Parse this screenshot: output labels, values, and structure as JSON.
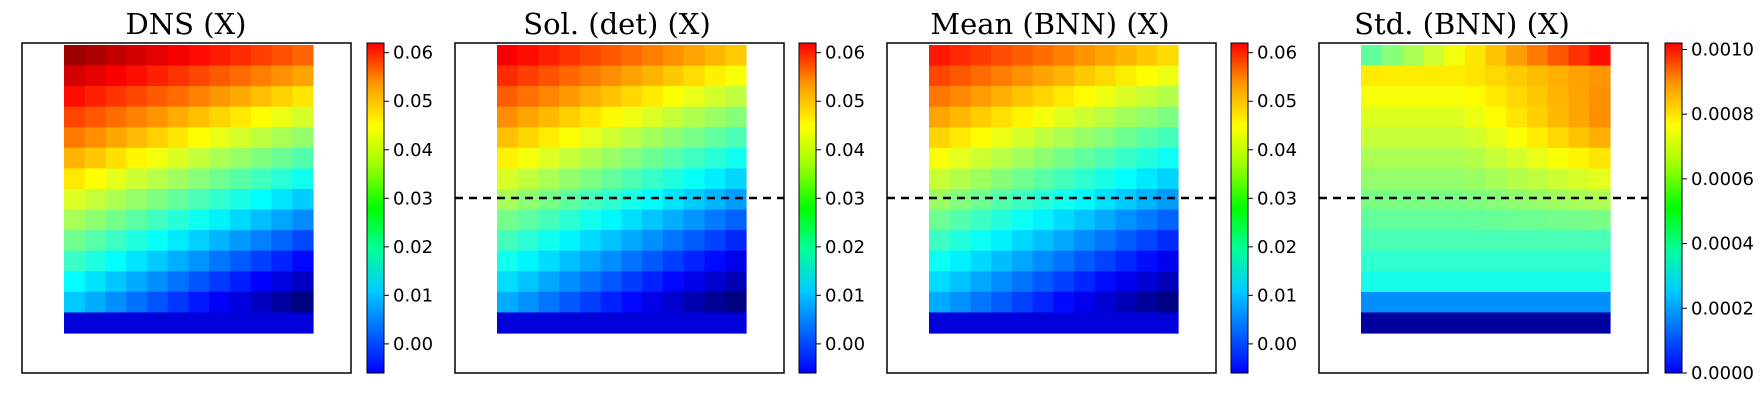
{
  "chart_data": [
    {
      "type": "heatmap",
      "title": "DNS (X)",
      "grid_rows": 14,
      "grid_cols": 12,
      "colorbar": {
        "range": [
          -0.006,
          0.062
        ],
        "ticks": [
          "0.00",
          "0.01",
          "0.02",
          "0.03",
          "0.04",
          "0.05",
          "0.06"
        ],
        "tick_values": [
          0.0,
          0.01,
          0.02,
          0.03,
          0.04,
          0.05,
          0.06
        ]
      },
      "field": {
        "top": 0.06,
        "left_drop": 0.044,
        "right_drop": 0.058,
        "x_drop": 0.013,
        "last_row": 0.0
      },
      "reference_line": null
    },
    {
      "type": "heatmap",
      "title": "Sol. (det) (X)",
      "grid_rows": 14,
      "grid_cols": 12,
      "colorbar": {
        "range": [
          -0.006,
          0.062
        ],
        "ticks": [
          "0.00",
          "0.01",
          "0.02",
          "0.03",
          "0.04",
          "0.05",
          "0.06"
        ],
        "tick_values": [
          0.0,
          0.01,
          0.02,
          0.03,
          0.04,
          0.05,
          0.06
        ]
      },
      "field": {
        "top": 0.054,
        "left_drop": 0.04,
        "right_drop": 0.052,
        "x_drop": 0.014,
        "last_row": 0.0
      },
      "reference_line": {
        "style": "dashed",
        "value": 0.03
      }
    },
    {
      "type": "heatmap",
      "title": "Mean (BNN) (X)",
      "grid_rows": 14,
      "grid_cols": 12,
      "colorbar": {
        "range": [
          -0.006,
          0.062
        ],
        "ticks": [
          "0.00",
          "0.01",
          "0.02",
          "0.03",
          "0.04",
          "0.05",
          "0.06"
        ],
        "tick_values": [
          0.0,
          0.01,
          0.02,
          0.03,
          0.04,
          0.05,
          0.06
        ]
      },
      "field": {
        "top": 0.052,
        "left_drop": 0.038,
        "right_drop": 0.05,
        "x_drop": 0.013,
        "last_row": 0.0
      },
      "reference_line": {
        "style": "dashed",
        "value": 0.03
      }
    },
    {
      "type": "heatmap",
      "title": "Std. (BNN) (X)",
      "grid_rows": 14,
      "grid_cols": 12,
      "colorbar": {
        "range": [
          0.0,
          0.00102
        ],
        "ticks": [
          "0.0000",
          "0.0002",
          "0.0004",
          "0.0006",
          "0.0008",
          "0.0010"
        ],
        "tick_values": [
          0.0,
          0.0002,
          0.0004,
          0.0006,
          0.0008,
          0.001
        ]
      },
      "field": {
        "mode": "std"
      },
      "reference_line": {
        "style": "dashed",
        "value": 0.03
      }
    }
  ]
}
